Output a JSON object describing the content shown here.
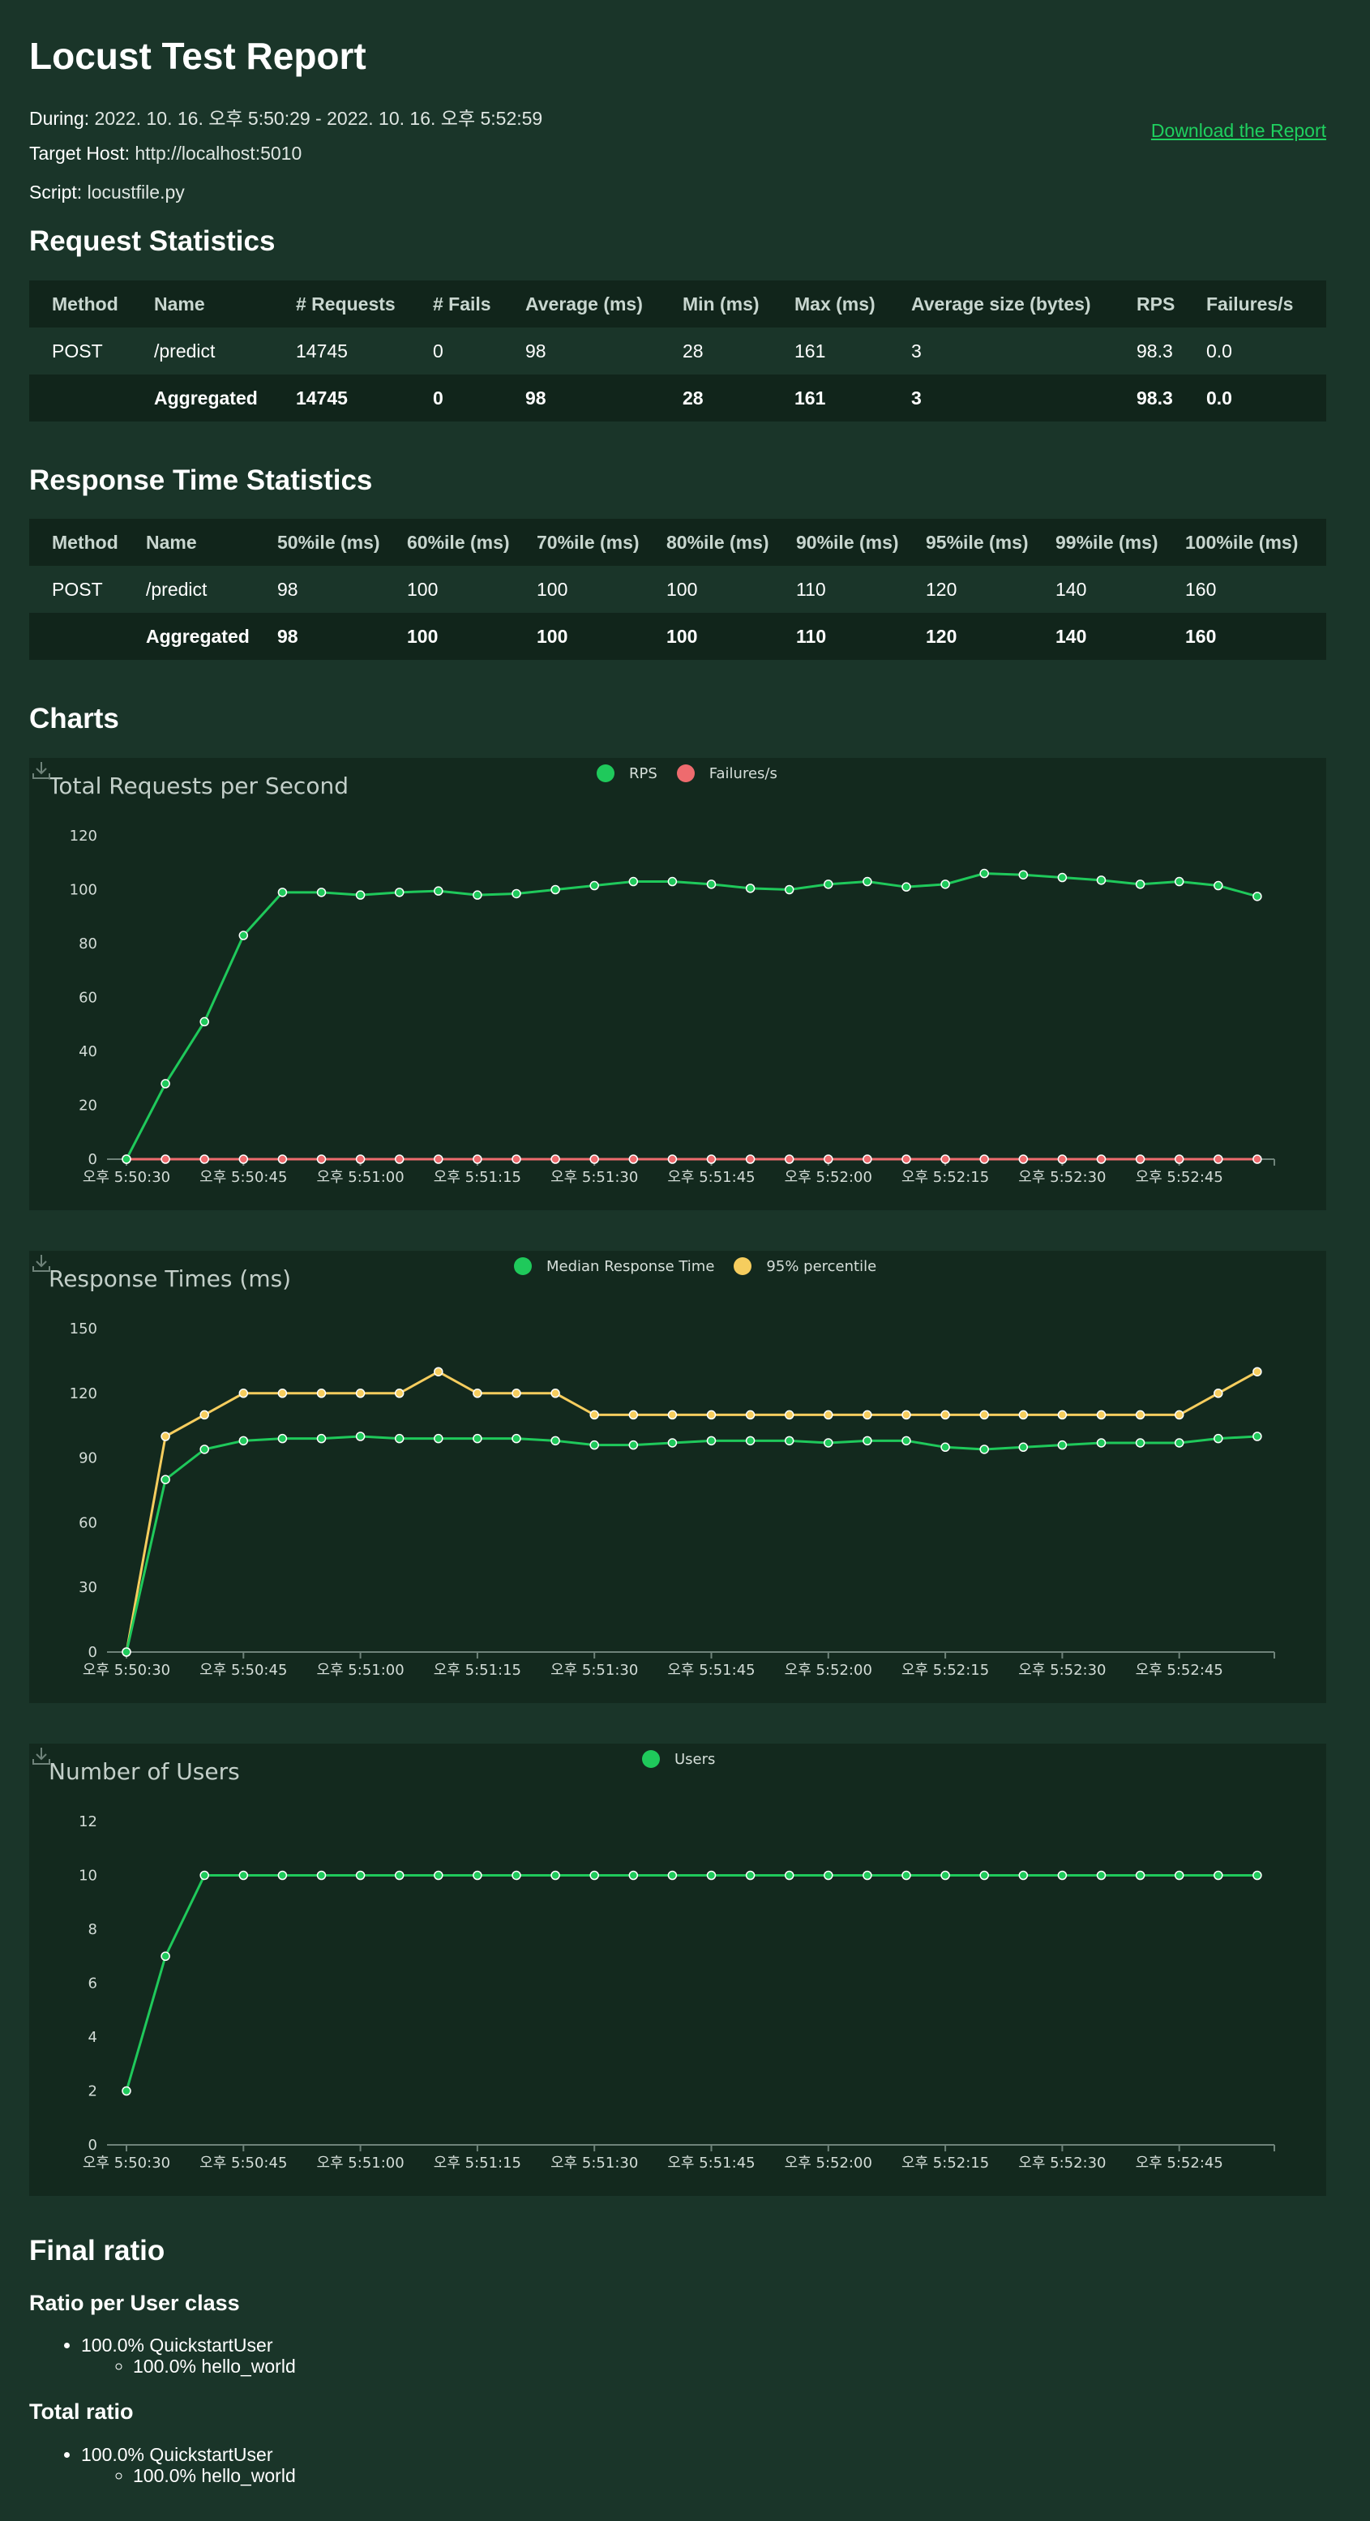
{
  "title": "Locust Test Report",
  "meta": {
    "during_label": "During:",
    "during_value": "2022. 10. 16. 오후 5:50:29 - 2022. 10. 16. 오후 5:52:59",
    "host_label": "Target Host:",
    "host_value": "http://localhost:5010",
    "script_label": "Script:",
    "script_value": "locustfile.py"
  },
  "download_link": "Download the Report",
  "request_stats": {
    "heading": "Request Statistics",
    "columns": [
      "Method",
      "Name",
      "# Requests",
      "# Fails",
      "Average (ms)",
      "Min (ms)",
      "Max (ms)",
      "Average size (bytes)",
      "RPS",
      "Failures/s"
    ],
    "rows": [
      [
        "POST",
        "/predict",
        "14745",
        "0",
        "98",
        "28",
        "161",
        "3",
        "98.3",
        "0.0"
      ],
      [
        "",
        "Aggregated",
        "14745",
        "0",
        "98",
        "28",
        "161",
        "3",
        "98.3",
        "0.0"
      ]
    ]
  },
  "response_stats": {
    "heading": "Response Time Statistics",
    "columns": [
      "Method",
      "Name",
      "50%ile (ms)",
      "60%ile (ms)",
      "70%ile (ms)",
      "80%ile (ms)",
      "90%ile (ms)",
      "95%ile (ms)",
      "99%ile (ms)",
      "100%ile (ms)"
    ],
    "rows": [
      [
        "POST",
        "/predict",
        "98",
        "100",
        "100",
        "100",
        "110",
        "120",
        "140",
        "160"
      ],
      [
        "",
        "Aggregated",
        "98",
        "100",
        "100",
        "100",
        "110",
        "120",
        "140",
        "160"
      ]
    ]
  },
  "charts_heading": "Charts",
  "chart_data": [
    {
      "type": "line",
      "title": "Total Requests per Second",
      "x_ticks": [
        "오후 5:50:30",
        "오후 5:50:45",
        "오후 5:51:00",
        "오후 5:51:15",
        "오후 5:51:30",
        "오후 5:51:45",
        "오후 5:52:00",
        "오후 5:52:15",
        "오후 5:52:30",
        "오후 5:52:45"
      ],
      "y_ticks": [
        0,
        20,
        40,
        60,
        80,
        100,
        120
      ],
      "ylim": [
        0,
        120
      ],
      "legend_position": "top-center",
      "grid": false,
      "series": [
        {
          "name": "RPS",
          "color": "#1fc95b",
          "values": [
            0,
            28,
            51,
            83,
            99,
            99,
            98,
            99,
            99.5,
            98,
            98.5,
            100,
            101.5,
            103,
            103,
            102,
            100.5,
            100,
            102,
            103,
            101,
            102,
            106,
            105.5,
            104.5,
            103.5,
            102,
            103,
            101.5,
            97.5
          ]
        },
        {
          "name": "Failures/s",
          "color": "#ee6b6e",
          "values": [
            0,
            0,
            0,
            0,
            0,
            0,
            0,
            0,
            0,
            0,
            0,
            0,
            0,
            0,
            0,
            0,
            0,
            0,
            0,
            0,
            0,
            0,
            0,
            0,
            0,
            0,
            0,
            0,
            0,
            0
          ]
        }
      ]
    },
    {
      "type": "line",
      "title": "Response Times (ms)",
      "x_ticks": [
        "오후 5:50:30",
        "오후 5:50:45",
        "오후 5:51:00",
        "오후 5:51:15",
        "오후 5:51:30",
        "오후 5:51:45",
        "오후 5:52:00",
        "오후 5:52:15",
        "오후 5:52:30",
        "오후 5:52:45"
      ],
      "y_ticks": [
        0,
        30,
        60,
        90,
        120,
        150
      ],
      "ylim": [
        0,
        150
      ],
      "legend_position": "top-center",
      "grid": false,
      "series": [
        {
          "name": "Median Response Time",
          "color": "#1fc95b",
          "values": [
            0,
            80,
            94,
            98,
            99,
            99,
            100,
            99,
            99,
            99,
            99,
            98,
            96,
            96,
            97,
            98,
            98,
            98,
            97,
            98,
            98,
            95,
            94,
            95,
            96,
            97,
            97,
            97,
            99,
            100
          ]
        },
        {
          "name": "95% percentile",
          "color": "#f6cd5e",
          "values": [
            0,
            100,
            110,
            120,
            120,
            120,
            120,
            120,
            130,
            120,
            120,
            120,
            110,
            110,
            110,
            110,
            110,
            110,
            110,
            110,
            110,
            110,
            110,
            110,
            110,
            110,
            110,
            110,
            120,
            130
          ]
        }
      ]
    },
    {
      "type": "line",
      "title": "Number of Users",
      "x_ticks": [
        "오후 5:50:30",
        "오후 5:50:45",
        "오후 5:51:00",
        "오후 5:51:15",
        "오후 5:51:30",
        "오후 5:51:45",
        "오후 5:52:00",
        "오후 5:52:15",
        "오후 5:52:30",
        "오후 5:52:45"
      ],
      "y_ticks": [
        0,
        2,
        4,
        6,
        8,
        10,
        12
      ],
      "ylim": [
        0,
        12
      ],
      "legend_position": "top-center",
      "grid": false,
      "series": [
        {
          "name": "Users",
          "color": "#1fc95b",
          "values": [
            2,
            7,
            10,
            10,
            10,
            10,
            10,
            10,
            10,
            10,
            10,
            10,
            10,
            10,
            10,
            10,
            10,
            10,
            10,
            10,
            10,
            10,
            10,
            10,
            10,
            10,
            10,
            10,
            10,
            10
          ]
        }
      ]
    }
  ],
  "final_ratio": {
    "heading": "Final ratio",
    "per_class_heading": "Ratio per User class",
    "per_class_user": "100.0% QuickstartUser",
    "per_class_task": "100.0% hello_world",
    "total_heading": "Total ratio",
    "total_user": "100.0% QuickstartUser",
    "total_task": "100.0% hello_world"
  }
}
